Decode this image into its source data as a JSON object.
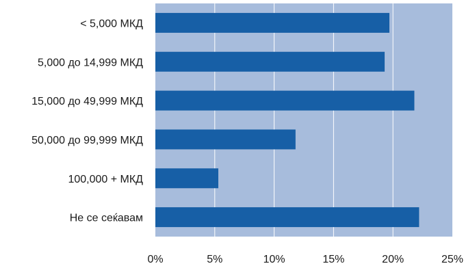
{
  "chart_data": {
    "type": "bar",
    "orientation": "horizontal",
    "title": "",
    "xlabel": "",
    "ylabel": "",
    "categories": [
      "< 5,000 МКД",
      "5,000 до 14,999 МКД",
      "15,000 до 49,999 МКД",
      "50,000 до 99,999 МКД",
      "100,000 + МКД",
      "Не се сеќавам"
    ],
    "values": [
      19.7,
      19.3,
      21.8,
      11.8,
      5.3,
      22.2
    ],
    "xlim": [
      0,
      25
    ],
    "x_ticks": [
      "0%",
      "5%",
      "10%",
      "15%",
      "20%",
      "25%"
    ],
    "grid": true,
    "legend": "none",
    "colors": {
      "plot_background": "#a7bcdc",
      "bar": "#175fa6",
      "gridline": "#ffffff"
    }
  }
}
